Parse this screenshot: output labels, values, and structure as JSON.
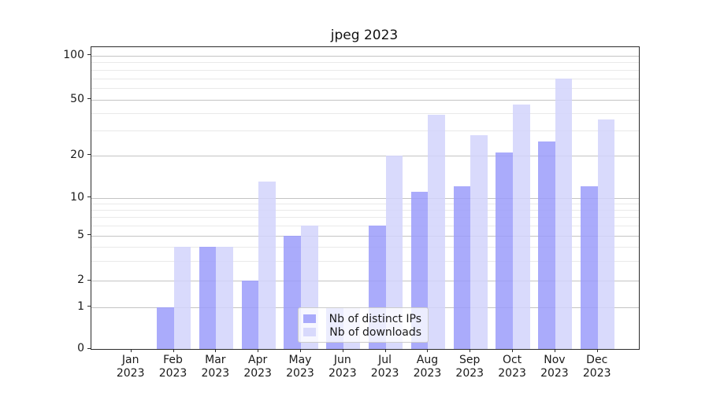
{
  "chart_data": {
    "type": "bar",
    "title": "jpeg 2023",
    "categories": [
      "Jan",
      "Feb",
      "Mar",
      "Apr",
      "May",
      "Jun",
      "Jul",
      "Aug",
      "Sep",
      "Oct",
      "Nov",
      "Dec"
    ],
    "x_year_label": "2023",
    "series": [
      {
        "name": "Nb of distinct IPs",
        "color": "#9b9cfa",
        "values": [
          0,
          1,
          4,
          2,
          5,
          1,
          6,
          11,
          12,
          21,
          25,
          12
        ]
      },
      {
        "name": "Nb of downloads",
        "color": "#d2d4fb",
        "values": [
          0,
          4,
          4,
          13,
          6,
          1,
          20,
          39,
          28,
          46,
          70,
          36
        ]
      }
    ],
    "y_ticks": [
      0,
      1,
      2,
      5,
      10,
      20,
      50,
      100
    ],
    "y_minor_gridlines": [
      3,
      4,
      6,
      7,
      8,
      9,
      30,
      40,
      60,
      70,
      80,
      90
    ],
    "axis": {
      "scale": "symlog",
      "y_min": 0,
      "y_top_value": 107,
      "grid": "on",
      "legend_position": "lower center"
    },
    "y_tick_fractions": [
      [
        0,
        0
      ],
      [
        1,
        0.1387
      ],
      [
        2,
        0.2259
      ],
      [
        5,
        0.3755
      ],
      [
        10,
        0.5012
      ],
      [
        20,
        0.6417
      ],
      [
        50,
        0.8257
      ],
      [
        100,
        0.9715
      ]
    ],
    "colors": {
      "major_grid": "#c4c4c4",
      "minor_grid": "#e9e9e9",
      "spine": "#2b2b2b",
      "text": "#1a1a1a"
    }
  }
}
